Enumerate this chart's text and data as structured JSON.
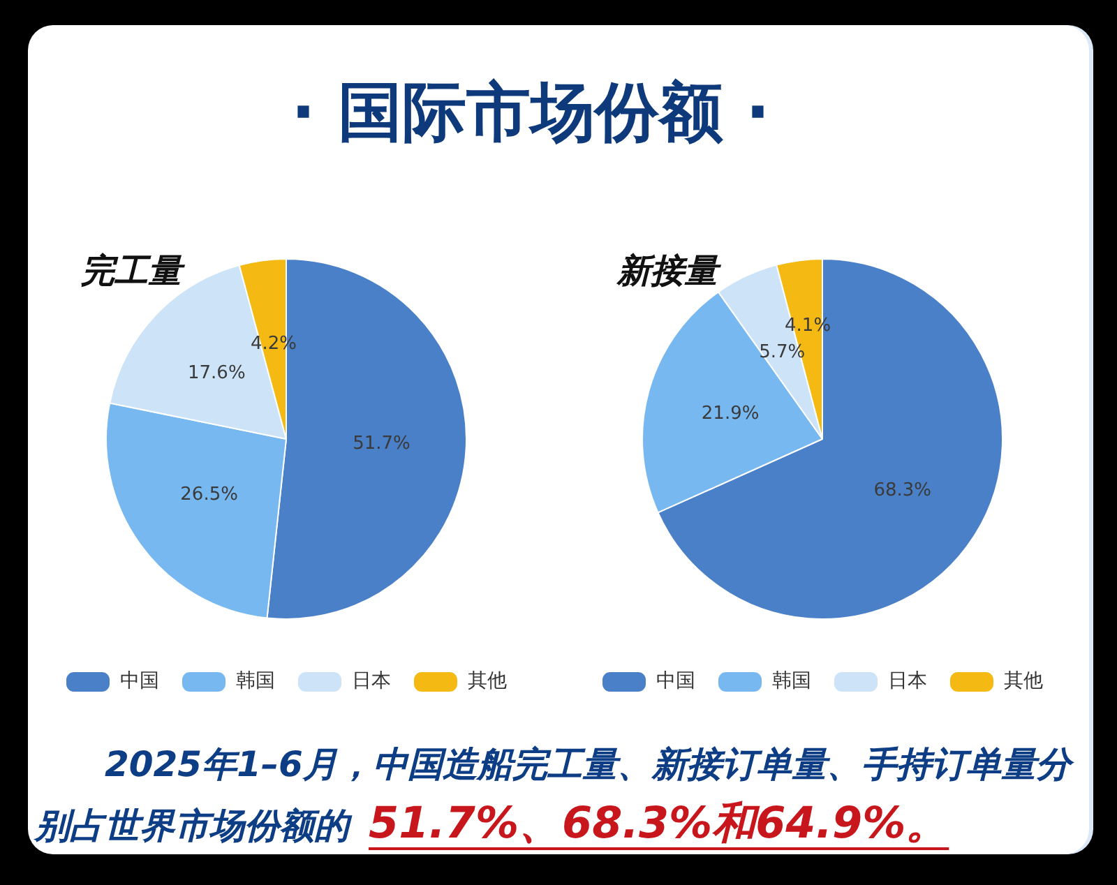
{
  "chart_data": [
    {
      "type": "other",
      "title": "· 国际市场份额 ·"
    },
    {
      "type": "pie",
      "title": "完工量",
      "categories": [
        "中国",
        "韩国",
        "日本",
        "其他"
      ],
      "values": [
        51.7,
        26.5,
        17.6,
        4.2
      ],
      "colors": [
        "#4a80c8",
        "#78b8f0",
        "#cde3f8",
        "#f5b914"
      ],
      "value_labels": [
        "51.7%",
        "26.5%",
        "17.6%",
        "4.2%"
      ],
      "legend": "bottom"
    },
    {
      "type": "pie",
      "title": "新接量",
      "categories": [
        "中国",
        "韩国",
        "日本",
        "其他"
      ],
      "values": [
        68.3,
        21.9,
        5.7,
        4.1
      ],
      "colors": [
        "#4a80c8",
        "#78b8f0",
        "#cde3f8",
        "#f5b914"
      ],
      "value_labels": [
        "68.3%",
        "21.9%",
        "5.7%",
        "4.1%"
      ],
      "legend": "bottom"
    },
    {
      "type": "other",
      "annotations": [
        "2025年1–6月，中国造船完工量、新接订单量、手持订单量分",
        "别占世界市场份额的",
        "51.7%、68.3%和64.9%。"
      ]
    }
  ]
}
